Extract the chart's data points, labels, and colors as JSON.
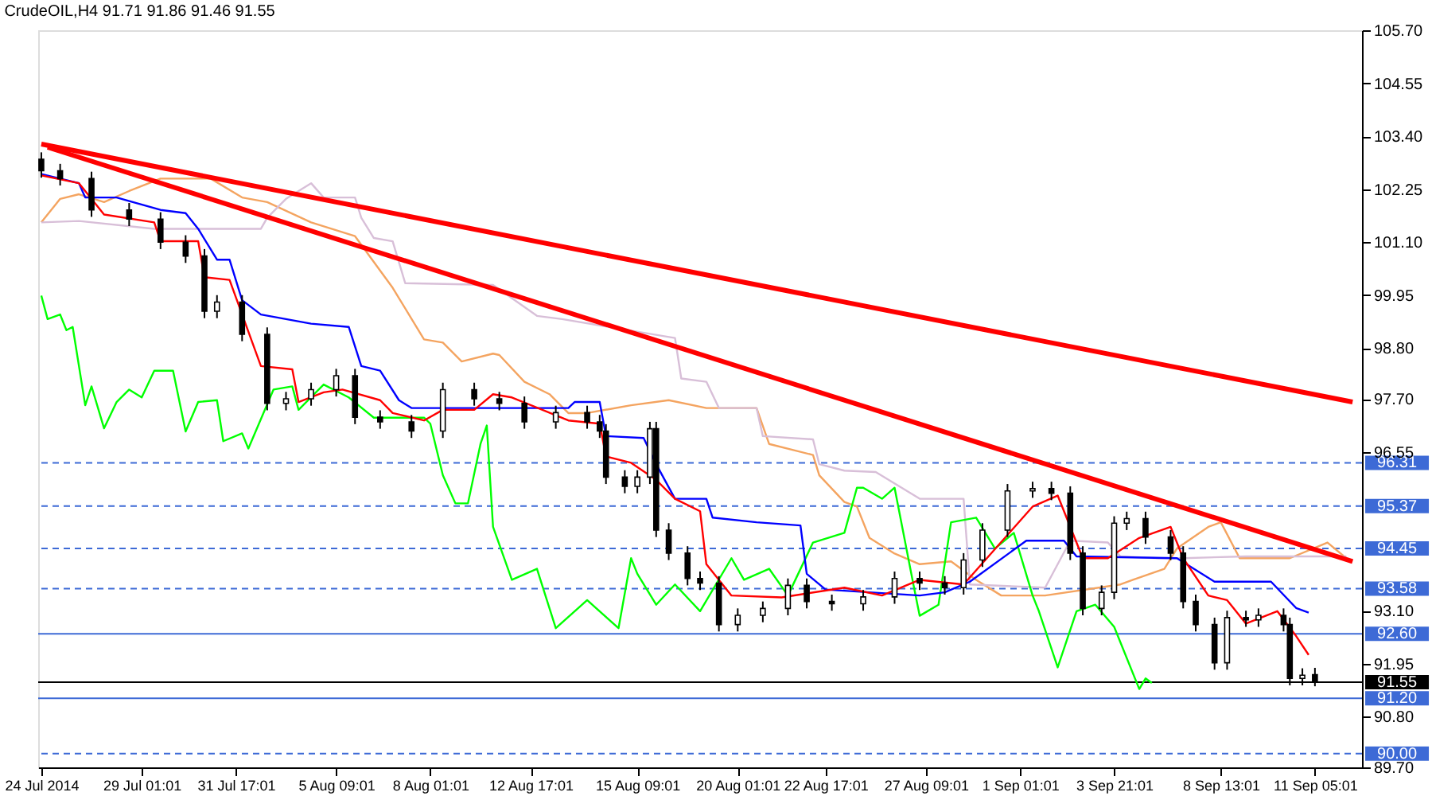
{
  "chart_data": {
    "type": "candlestick",
    "title": "CrudeOIL,H4  91.71 91.86 91.46 91.55",
    "categories": [
      "24 Jul 2014",
      null,
      null,
      null,
      null,
      null,
      null,
      null,
      null,
      null,
      null,
      null,
      null,
      null,
      null,
      null,
      "29 Jul 01:01",
      null,
      null,
      null,
      null,
      null,
      null,
      null,
      null,
      null,
      null,
      null,
      null,
      null,
      null,
      "31 Jul 17:01",
      null,
      null,
      null,
      null,
      null,
      null,
      null,
      null,
      null,
      null,
      null,
      null,
      null,
      null,
      null,
      "5 Aug 09:01",
      null,
      null,
      null,
      null,
      null,
      null,
      null,
      null,
      null,
      null,
      null,
      null,
      null,
      null,
      "8 Aug 01:01",
      null,
      null,
      null,
      null,
      null,
      null,
      null,
      null,
      null,
      null,
      null,
      null,
      null,
      null,
      null,
      "12 Aug 17:01",
      null,
      null,
      null,
      null,
      null,
      null,
      null,
      null,
      null,
      null,
      null,
      null,
      null,
      null,
      null,
      null,
      "15 Aug 09:01",
      null,
      null,
      null,
      null,
      null,
      null,
      null,
      null,
      null,
      null,
      null,
      null,
      null,
      null,
      null,
      "20 Aug 01:01",
      null,
      null,
      null,
      null,
      null,
      null,
      null,
      null,
      null,
      null,
      null,
      null,
      null,
      "22 Aug 17:01",
      null,
      null,
      null,
      null,
      null,
      null,
      null,
      null,
      null,
      null,
      null,
      null,
      null,
      null,
      null,
      "27 Aug 09:01",
      null,
      null,
      null,
      null,
      null,
      null,
      null,
      null,
      null,
      null,
      null,
      null,
      null,
      null,
      "1 Sep 01:01",
      null,
      null,
      null,
      null,
      null,
      null,
      null,
      null,
      null,
      null,
      null,
      null,
      null,
      null,
      "3 Sep 21:01",
      null,
      null,
      null,
      null,
      null,
      null,
      null,
      null,
      null,
      null,
      null,
      null,
      null,
      null,
      null,
      null,
      "8 Sep 13:01",
      null,
      null,
      null,
      null,
      null,
      null,
      null,
      null,
      null,
      null,
      null,
      null,
      null,
      null,
      "11 Sep 05:01",
      null,
      null,
      null,
      null,
      null,
      null,
      null
    ],
    "ohlc": [
      [
        102.9,
        103.05,
        102.5,
        102.65
      ],
      null,
      null,
      [
        102.65,
        102.8,
        102.33,
        102.48
      ],
      null,
      null,
      null,
      null,
      [
        102.48,
        102.63,
        101.65,
        101.8
      ],
      null,
      null,
      null,
      null,
      null,
      [
        101.8,
        101.95,
        101.45,
        101.6
      ],
      null,
      null,
      null,
      null,
      [
        101.6,
        101.75,
        100.95,
        101.1
      ],
      null,
      null,
      null,
      [
        101.1,
        101.25,
        100.65,
        100.8
      ],
      null,
      null,
      [
        100.8,
        100.95,
        99.45,
        99.6
      ],
      null,
      [
        99.6,
        99.95,
        99.45,
        99.8
      ],
      null,
      null,
      null,
      [
        99.8,
        99.95,
        98.95,
        99.1
      ],
      null,
      null,
      null,
      [
        99.1,
        99.25,
        97.45,
        97.6
      ],
      null,
      null,
      [
        97.6,
        97.85,
        97.45,
        97.7
      ],
      null,
      null,
      null,
      [
        97.7,
        98.05,
        97.55,
        97.9
      ],
      null,
      null,
      null,
      [
        97.9,
        98.35,
        97.75,
        98.2
      ],
      null,
      null,
      [
        98.2,
        98.35,
        97.15,
        97.3
      ],
      null,
      null,
      null,
      [
        97.3,
        97.45,
        97.05,
        97.2
      ],
      null,
      null,
      null,
      null,
      [
        97.2,
        97.35,
        96.85,
        97.0
      ],
      null,
      null,
      null,
      null,
      [
        97.0,
        98.05,
        96.85,
        97.9
      ],
      null,
      null,
      null,
      null,
      [
        97.9,
        98.05,
        97.55,
        97.7
      ],
      null,
      null,
      null,
      [
        97.7,
        97.85,
        97.45,
        97.6
      ],
      null,
      null,
      null,
      [
        97.6,
        97.75,
        97.05,
        97.2
      ],
      null,
      null,
      null,
      null,
      [
        97.2,
        97.55,
        97.05,
        97.4
      ],
      null,
      null,
      null,
      null,
      [
        97.4,
        97.55,
        97.05,
        97.2
      ],
      null,
      [
        97.2,
        97.35,
        96.85,
        97.0
      ],
      [
        97.0,
        97.15,
        95.85,
        96.0
      ],
      null,
      null,
      [
        96.0,
        96.15,
        95.65,
        95.8
      ],
      null,
      [
        95.8,
        96.15,
        95.65,
        96.0
      ],
      null,
      [
        96.0,
        97.2,
        95.85,
        97.05
      ],
      [
        97.05,
        97.2,
        94.7,
        94.85
      ],
      null,
      [
        94.85,
        95.0,
        94.2,
        94.35
      ],
      null,
      null,
      [
        94.35,
        94.5,
        93.65,
        93.8
      ],
      null,
      [
        93.8,
        93.95,
        93.55,
        93.7
      ],
      null,
      null,
      [
        93.7,
        93.85,
        92.65,
        92.8
      ],
      null,
      null,
      [
        92.8,
        93.15,
        92.65,
        93.0
      ],
      null,
      null,
      null,
      [
        93.0,
        93.3,
        92.85,
        93.15
      ],
      null,
      null,
      null,
      [
        93.15,
        93.8,
        93.0,
        93.65
      ],
      null,
      null,
      [
        93.65,
        93.8,
        93.15,
        93.3
      ],
      null,
      null,
      null,
      [
        93.3,
        93.45,
        93.1,
        93.25
      ],
      null,
      null,
      null,
      null,
      [
        93.25,
        93.55,
        93.1,
        93.4
      ],
      null,
      null,
      null,
      null,
      [
        93.4,
        93.95,
        93.25,
        93.8
      ],
      null,
      null,
      null,
      [
        93.8,
        93.95,
        93.55,
        93.7
      ],
      null,
      null,
      null,
      [
        93.7,
        93.85,
        93.45,
        93.6
      ],
      null,
      null,
      [
        93.6,
        94.35,
        93.45,
        94.2
      ],
      null,
      null,
      [
        94.2,
        95.0,
        94.05,
        94.85
      ],
      null,
      null,
      null,
      [
        94.85,
        95.85,
        94.7,
        95.7
      ],
      null,
      null,
      null,
      [
        95.7,
        95.9,
        95.55,
        95.75
      ],
      null,
      null,
      [
        95.75,
        95.9,
        95.5,
        95.65
      ],
      null,
      null,
      [
        95.65,
        95.8,
        94.2,
        94.35
      ],
      null,
      [
        94.35,
        94.5,
        93.0,
        93.15
      ],
      null,
      null,
      [
        93.15,
        93.65,
        93.0,
        93.5
      ],
      null,
      [
        93.5,
        95.15,
        93.35,
        95.0
      ],
      null,
      [
        95.0,
        95.25,
        94.85,
        95.1
      ],
      null,
      null,
      [
        95.1,
        95.25,
        94.55,
        94.7
      ],
      null,
      null,
      null,
      [
        94.7,
        94.85,
        94.2,
        94.35
      ],
      null,
      [
        94.35,
        94.5,
        93.15,
        93.3
      ],
      null,
      [
        93.3,
        93.45,
        92.65,
        92.8
      ],
      null,
      null,
      [
        92.8,
        92.95,
        91.82,
        91.97
      ],
      null,
      [
        91.97,
        93.1,
        91.82,
        92.95
      ],
      null,
      null,
      [
        92.95,
        93.1,
        92.75,
        92.9
      ],
      null,
      [
        92.9,
        93.15,
        92.75,
        93.0
      ],
      null,
      null,
      null,
      [
        93.0,
        93.15,
        92.65,
        92.8
      ],
      [
        92.8,
        92.95,
        91.48,
        91.63
      ],
      null,
      [
        91.63,
        91.85,
        91.48,
        91.7
      ],
      null,
      [
        91.71,
        91.86,
        91.46,
        91.55
      ],
      null,
      null,
      null,
      null,
      null,
      null,
      null
    ],
    "series": [
      {
        "type": "line",
        "color": "#f4a460",
        "values": [
          101.53,
          null,
          null,
          102.04,
          null,
          null,
          102.14,
          null,
          null,
          null,
          101.97,
          null,
          null,
          null,
          102.21,
          null,
          null,
          null,
          null,
          102.48,
          null,
          null,
          null,
          null,
          null,
          null,
          null,
          102.48,
          null,
          null,
          null,
          null,
          102.07,
          null,
          null,
          null,
          101.97,
          null,
          null,
          null,
          null,
          null,
          null,
          101.53,
          null,
          null,
          null,
          null,
          null,
          null,
          101.23,
          null,
          null,
          null,
          null,
          null,
          100.11,
          null,
          null,
          null,
          null,
          98.99,
          null,
          null,
          98.92,
          null,
          null,
          98.51,
          null,
          null,
          null,
          null,
          98.68,
          98.65,
          null,
          null,
          null,
          98.07,
          null,
          null,
          null,
          97.8,
          null,
          null,
          97.39,
          null,
          null,
          97.39,
          null,
          null,
          null,
          null,
          null,
          null,
          97.56,
          null,
          null,
          null,
          null,
          null,
          97.67,
          null,
          null,
          null,
          null,
          null,
          97.5,
          null,
          null,
          null,
          null,
          null,
          null,
          null,
          97.5,
          null,
          96.72,
          null,
          null,
          null,
          null,
          null,
          null,
          96.48,
          96.04,
          null,
          null,
          null,
          95.46,
          null,
          95.36,
          null,
          94.68,
          null,
          null,
          null,
          94.34,
          null,
          null,
          null,
          94.11,
          null,
          null,
          null,
          null,
          94.17,
          null,
          null,
          null,
          93.77,
          null,
          null,
          null,
          93.43,
          null,
          null,
          null,
          null,
          null,
          null,
          93.43,
          null,
          null,
          null,
          null,
          null,
          null,
          null,
          null,
          null,
          null,
          null,
          93.67,
          null,
          93.77,
          null,
          null,
          null,
          null,
          94.01,
          null,
          94.45,
          null,
          null,
          null,
          null,
          94.92,
          null,
          95.02,
          null,
          null,
          94.24,
          null,
          null,
          null,
          null,
          null,
          null,
          null,
          94.24,
          null,
          null,
          null,
          null,
          null,
          94.58,
          null,
          null,
          94.24,
          null,
          null
        ]
      },
      {
        "type": "line",
        "color": "#d8bfd8",
        "values": [
          101.53,
          null,
          null,
          null,
          null,
          null,
          101.56,
          null,
          null,
          null,
          null,
          null,
          null,
          null,
          null,
          null,
          null,
          null,
          101.39,
          null,
          null,
          null,
          null,
          null,
          null,
          null,
          null,
          null,
          null,
          null,
          null,
          null,
          null,
          null,
          null,
          101.39,
          101.63,
          null,
          null,
          102.04,
          null,
          null,
          null,
          102.38,
          null,
          102.07,
          null,
          null,
          null,
          null,
          102.07,
          101.63,
          null,
          101.19,
          null,
          null,
          101.12,
          null,
          100.21,
          null,
          null,
          null,
          null,
          null,
          null,
          null,
          null,
          null,
          null,
          null,
          null,
          null,
          100.17,
          null,
          null,
          null,
          null,
          null,
          null,
          99.5,
          null,
          null,
          null,
          99.43,
          null,
          null,
          null,
          null,
          null,
          null,
          null,
          null,
          null,
          null,
          null,
          null,
          null,
          null,
          null,
          null,
          null,
          99.02,
          98.14,
          null,
          null,
          null,
          98.07,
          null,
          97.5,
          null,
          null,
          null,
          null,
          null,
          97.5,
          96.89,
          null,
          null,
          null,
          null,
          null,
          null,
          null,
          96.82,
          96.28,
          null,
          null,
          null,
          96.14,
          null,
          null,
          null,
          null,
          96.11,
          null,
          null,
          null,
          null,
          null,
          null,
          95.53,
          null,
          null,
          null,
          null,
          null,
          null,
          95.53,
          93.67,
          null,
          null,
          null,
          null,
          null,
          null,
          null,
          null,
          null,
          null,
          null,
          93.6,
          null,
          null,
          null,
          94.62,
          null,
          null,
          null,
          null,
          null,
          94.58,
          null,
          94.28,
          null,
          null,
          null,
          null,
          null,
          94.24,
          null,
          null,
          null,
          94.24,
          null,
          null,
          null,
          null,
          null,
          null,
          null,
          null,
          null,
          94.28,
          null,
          null,
          null,
          null,
          null,
          null,
          null,
          null,
          null,
          null,
          null,
          null,
          null,
          null,
          null,
          94.28,
          null,
          null
        ]
      },
      {
        "type": "line",
        "color": "#00ff00",
        "values": [
          99.94,
          99.43,
          null,
          99.53,
          99.19,
          99.26,
          null,
          97.56,
          97.97,
          null,
          97.06,
          null,
          97.63,
          null,
          97.9,
          null,
          97.73,
          null,
          98.31,
          null,
          null,
          98.31,
          null,
          96.99,
          null,
          97.63,
          null,
          null,
          97.67,
          96.78,
          null,
          null,
          96.95,
          96.62,
          null,
          null,
          null,
          97.9,
          null,
          null,
          97.97,
          97.46,
          null,
          null,
          null,
          98.01,
          null,
          null,
          null,
          97.73,
          null,
          null,
          null,
          97.29,
          null,
          null,
          null,
          null,
          null,
          null,
          null,
          97.29,
          97.16,
          null,
          96.04,
          null,
          95.43,
          null,
          95.43,
          null,
          96.72,
          97.12,
          94.92,
          null,
          null,
          93.77,
          null,
          null,
          null,
          94.01,
          null,
          null,
          92.72,
          null,
          null,
          null,
          null,
          93.33,
          null,
          null,
          null,
          null,
          92.72,
          null,
          94.24,
          93.9,
          null,
          null,
          93.23,
          null,
          null,
          93.67,
          null,
          null,
          null,
          93.09,
          null,
          null,
          null,
          null,
          94.24,
          null,
          93.77,
          null,
          null,
          null,
          94.01,
          null,
          null,
          93.43,
          null,
          null,
          null,
          94.58,
          null,
          null,
          null,
          null,
          94.79,
          null,
          95.77,
          95.77,
          null,
          null,
          95.53,
          null,
          95.77,
          null,
          null,
          93.67,
          92.99,
          null,
          null,
          93.23,
          null,
          95.02,
          null,
          null,
          null,
          95.12,
          null,
          null,
          94.45,
          null,
          null,
          94.79,
          null,
          null,
          93.43,
          93.09,
          null,
          null,
          91.87,
          null,
          null,
          93.09,
          null,
          null,
          93.23,
          null,
          null,
          92.75,
          null,
          null,
          null,
          91.4,
          91.63,
          91.53,
          null,
          null,
          null,
          null,
          null,
          null,
          null,
          null,
          null,
          null,
          null,
          null,
          null,
          null,
          null,
          null,
          null,
          null,
          null,
          null,
          null,
          null,
          null,
          null,
          null,
          null,
          null,
          null,
          null,
          null,
          null,
          null,
          null
        ]
      },
      {
        "type": "line",
        "color": "#0000ff",
        "values": [
          102.58,
          null,
          null,
          null,
          null,
          null,
          102.38,
          102.07,
          null,
          null,
          null,
          null,
          102.07,
          null,
          null,
          null,
          null,
          null,
          null,
          101.8,
          null,
          null,
          null,
          101.73,
          null,
          101.39,
          null,
          null,
          100.72,
          null,
          100.72,
          null,
          99.84,
          null,
          null,
          99.53,
          null,
          null,
          null,
          null,
          null,
          null,
          null,
          99.33,
          null,
          null,
          null,
          null,
          null,
          99.26,
          null,
          98.41,
          null,
          null,
          98.31,
          null,
          null,
          97.67,
          null,
          97.5,
          null,
          null,
          null,
          null,
          null,
          null,
          null,
          null,
          null,
          null,
          null,
          null,
          97.5,
          null,
          null,
          null,
          null,
          null,
          null,
          null,
          null,
          null,
          null,
          null,
          97.5,
          97.63,
          null,
          null,
          null,
          97.63,
          96.89,
          null,
          null,
          null,
          null,
          null,
          96.85,
          null,
          96.28,
          null,
          null,
          95.53,
          null,
          null,
          null,
          null,
          95.53,
          95.12,
          null,
          null,
          null,
          null,
          null,
          null,
          95.02,
          null,
          null,
          null,
          null,
          null,
          null,
          94.95,
          93.9,
          null,
          null,
          93.56,
          null,
          null,
          null,
          null,
          null,
          null,
          null,
          null,
          null,
          null,
          null,
          null,
          null,
          null,
          93.43,
          null,
          null,
          null,
          93.5,
          null,
          null,
          null,
          93.73,
          null,
          null,
          null,
          null,
          null,
          null,
          null,
          null,
          94.62,
          null,
          null,
          null,
          null,
          null,
          94.62,
          null,
          94.28,
          null,
          null,
          null,
          null,
          null,
          null,
          null,
          null,
          null,
          null,
          null,
          null,
          null,
          null,
          null,
          94.24,
          null,
          null,
          null,
          null,
          null,
          93.73,
          null,
          null,
          null,
          null,
          null,
          null,
          null,
          null,
          93.73,
          null,
          null,
          null,
          93.16,
          null,
          93.06,
          null,
          null,
          null,
          null,
          null,
          null,
          null,
          null
        ]
      },
      {
        "type": "line",
        "color": "#ff0000",
        "values": [
          102.55,
          null,
          null,
          null,
          null,
          null,
          102.38,
          null,
          null,
          null,
          101.7,
          null,
          null,
          null,
          null,
          null,
          null,
          null,
          101.53,
          101.12,
          null,
          null,
          null,
          null,
          null,
          101.12,
          100.34,
          null,
          null,
          null,
          100.28,
          null,
          null,
          null,
          null,
          98.41,
          null,
          null,
          null,
          null,
          98.34,
          97.63,
          null,
          null,
          null,
          97.84,
          null,
          null,
          97.9,
          null,
          null,
          null,
          null,
          null,
          97.67,
          null,
          97.39,
          null,
          null,
          null,
          null,
          97.23,
          null,
          null,
          97.46,
          null,
          null,
          null,
          null,
          97.46,
          null,
          null,
          97.8,
          null,
          null,
          97.73,
          null,
          null,
          null,
          null,
          null,
          null,
          null,
          null,
          97.23,
          null,
          null,
          null,
          null,
          97.16,
          96.45,
          null,
          null,
          null,
          96.31,
          null,
          null,
          null,
          95.94,
          null,
          null,
          95.53,
          null,
          null,
          null,
          95.26,
          94.11,
          null,
          null,
          null,
          93.43,
          null,
          null,
          null,
          null,
          null,
          null,
          null,
          93.39,
          null,
          null,
          null,
          null,
          null,
          null,
          null,
          null,
          null,
          93.6,
          null,
          null,
          null,
          null,
          null,
          93.43,
          null,
          null,
          null,
          null,
          null,
          93.77,
          null,
          null,
          null,
          null,
          null,
          null,
          93.67,
          null,
          null,
          null,
          null,
          null,
          null,
          null,
          null,
          null,
          null,
          95.36,
          null,
          null,
          null,
          95.6,
          null,
          null,
          null,
          94.24,
          null,
          null,
          null,
          94.24,
          null,
          null,
          null,
          null,
          94.68,
          null,
          null,
          null,
          null,
          94.92,
          null,
          94.24,
          null,
          null,
          null,
          93.43,
          null,
          null,
          93.33,
          null,
          null,
          92.82,
          null,
          null,
          null,
          null,
          93.09,
          null,
          null,
          92.55,
          null,
          92.14,
          null,
          null,
          null,
          null,
          null,
          null,
          null,
          null
        ]
      },
      {
        "type": "line",
        "color": "#ff0000",
        "values": [
          103.23,
          null,
          null,
          null,
          null,
          null,
          null,
          null,
          null,
          null,
          null,
          null,
          null,
          null,
          null,
          null,
          null,
          null,
          null,
          null,
          null,
          null,
          null,
          null,
          null,
          null,
          null,
          null,
          null,
          null,
          null,
          null,
          null,
          null,
          null,
          null,
          null,
          null,
          null,
          null,
          null,
          null,
          null,
          null,
          null,
          null,
          null,
          null,
          null,
          null,
          null,
          null,
          null,
          null,
          null,
          null,
          null,
          null,
          null,
          null,
          null,
          null,
          null,
          null,
          null,
          null,
          null,
          null,
          null,
          null,
          null,
          null,
          null,
          null,
          null,
          null,
          null,
          null,
          null,
          null,
          null,
          null,
          null,
          null,
          null,
          null,
          null,
          null,
          null,
          null,
          null,
          null,
          null,
          null,
          null,
          null,
          null,
          null,
          null,
          null,
          null,
          null,
          null,
          null,
          null,
          null,
          null,
          null,
          null,
          null,
          null,
          null,
          null,
          null,
          null,
          null,
          null,
          null,
          null,
          null,
          null,
          null,
          null,
          null,
          null,
          null,
          null,
          null,
          null,
          null,
          null,
          null,
          null,
          null,
          null,
          null,
          null,
          null,
          null,
          null,
          null,
          null,
          null,
          null,
          null,
          null,
          null,
          null,
          null,
          null,
          null,
          null,
          null,
          null,
          null,
          null,
          null,
          null,
          null,
          null,
          null,
          null,
          null,
          null,
          null,
          null,
          null,
          null,
          null,
          null,
          null,
          null,
          null,
          null,
          null,
          null,
          null,
          null,
          null,
          null,
          null,
          null,
          null,
          null,
          null,
          null,
          null,
          null,
          null,
          null,
          null,
          null,
          null,
          null,
          null,
          null,
          null,
          null,
          null,
          null,
          null,
          null,
          null,
          null,
          null,
          null,
          null,
          null,
          null,
          97.63,
          null
        ]
      },
      {
        "type": "line",
        "color": "#ff0000",
        "values": [
          null,
          103.16,
          null,
          null,
          null,
          null,
          null,
          null,
          null,
          null,
          null,
          null,
          null,
          null,
          null,
          null,
          null,
          null,
          null,
          null,
          null,
          null,
          null,
          null,
          null,
          null,
          null,
          null,
          null,
          null,
          null,
          null,
          null,
          null,
          null,
          null,
          null,
          null,
          null,
          null,
          null,
          null,
          null,
          null,
          null,
          null,
          null,
          null,
          null,
          null,
          null,
          null,
          null,
          null,
          null,
          null,
          null,
          null,
          null,
          null,
          null,
          null,
          null,
          null,
          null,
          null,
          null,
          null,
          null,
          null,
          null,
          null,
          null,
          null,
          null,
          null,
          null,
          null,
          null,
          null,
          null,
          null,
          null,
          null,
          null,
          null,
          null,
          null,
          null,
          null,
          null,
          null,
          null,
          null,
          null,
          null,
          null,
          null,
          null,
          null,
          null,
          null,
          null,
          null,
          null,
          null,
          null,
          null,
          null,
          null,
          null,
          null,
          null,
          null,
          null,
          null,
          null,
          null,
          null,
          null,
          null,
          null,
          null,
          null,
          null,
          null,
          null,
          null,
          null,
          null,
          null,
          null,
          null,
          null,
          null,
          null,
          null,
          null,
          null,
          null,
          null,
          null,
          null,
          null,
          null,
          null,
          null,
          null,
          null,
          null,
          null,
          null,
          null,
          null,
          null,
          null,
          null,
          null,
          null,
          null,
          null,
          null,
          null,
          null,
          null,
          null,
          null,
          null,
          null,
          null,
          null,
          null,
          null,
          null,
          null,
          null,
          null,
          null,
          null,
          null,
          null,
          null,
          null,
          null,
          null,
          null,
          null,
          null,
          null,
          null,
          null,
          null,
          null,
          null,
          null,
          null,
          null,
          null,
          null,
          null,
          null,
          null,
          null,
          null,
          null,
          null,
          null,
          null,
          null,
          94.17,
          null
        ]
      }
    ],
    "ylim": [
      89.7,
      105.7
    ],
    "yticks": [
      {
        "value": 105.7,
        "label": "105.70"
      },
      {
        "value": 104.55,
        "label": "104.55"
      },
      {
        "value": 103.4,
        "label": "103.40"
      },
      {
        "value": 102.25,
        "label": "102.25"
      },
      {
        "value": 101.1,
        "label": "101.10"
      },
      {
        "value": 99.95,
        "label": "99.95"
      },
      {
        "value": 98.8,
        "label": "98.80"
      },
      {
        "value": 97.7,
        "label": "97.70"
      },
      {
        "value": 96.55,
        "label": "96.55"
      },
      {
        "value": 93.1,
        "label": "93.10"
      },
      {
        "value": 91.95,
        "label": "91.95"
      },
      {
        "value": 90.8,
        "label": "90.80"
      },
      {
        "value": 89.7,
        "label": "89.70"
      }
    ],
    "ref_lines": [
      {
        "axis": "y",
        "value": 96.31,
        "label": "96.31",
        "color": "#3d6ad6",
        "line_style": "dashed"
      },
      {
        "axis": "y",
        "value": 95.37,
        "label": "95.37",
        "color": "#3d6ad6",
        "line_style": "dashed"
      },
      {
        "axis": "y",
        "value": 94.45,
        "label": "94.45",
        "color": "#3d6ad6",
        "line_style": "dashed"
      },
      {
        "axis": "y",
        "value": 93.58,
        "label": "93.58",
        "color": "#3d6ad6",
        "line_style": "dashed"
      },
      {
        "axis": "y",
        "value": 92.6,
        "label": "92.60",
        "color": "#3d6ad6",
        "line_style": "solid"
      },
      {
        "axis": "y",
        "value": 91.55,
        "label": "91.55",
        "color": "#000000",
        "line_style": "solid"
      },
      {
        "axis": "y",
        "value": 91.2,
        "label": "91.20",
        "color": "#3d6ad6",
        "line_style": "solid"
      },
      {
        "axis": "y",
        "value": 90.0,
        "label": "90.00",
        "color": "#3d6ad6",
        "line_style": "dashed"
      }
    ],
    "grid": false
  }
}
